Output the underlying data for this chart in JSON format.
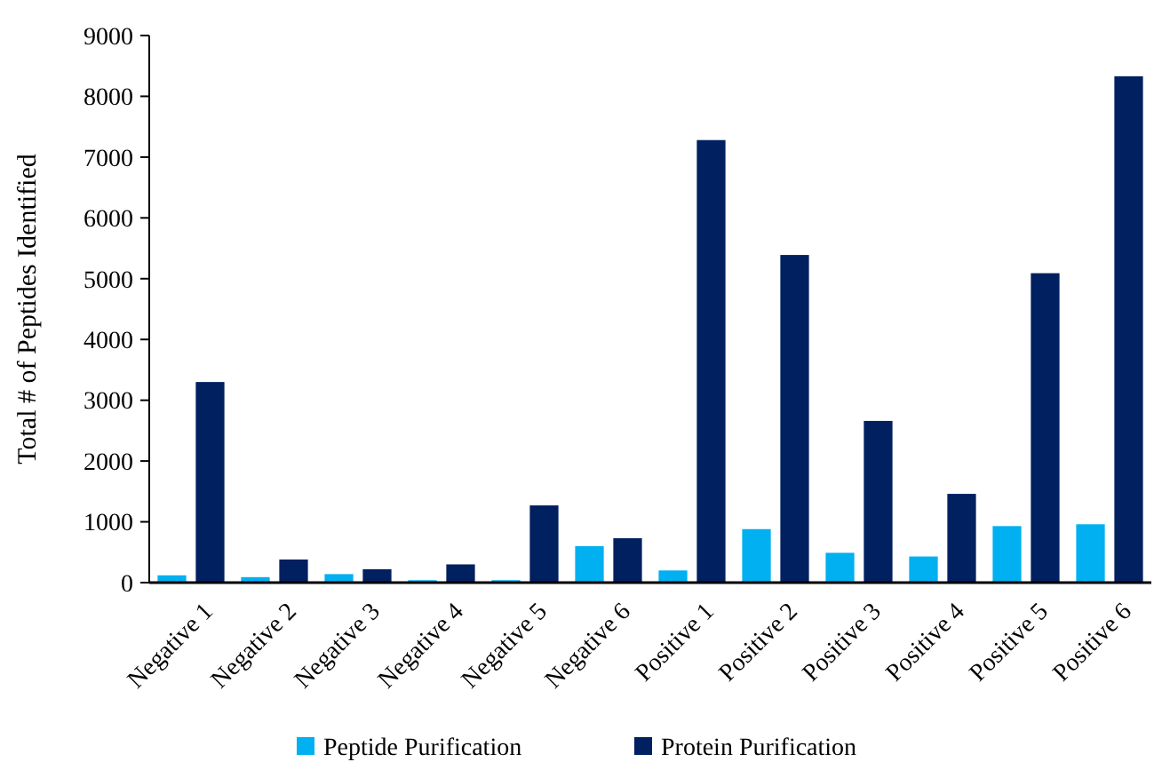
{
  "chart_data": {
    "type": "bar",
    "ylabel": "Total # of Peptides Identified",
    "categories": [
      "Negative 1",
      "Negative 2",
      "Negative 3",
      "Negative 4",
      "Negative 5",
      "Negative 6",
      "Positive 1",
      "Positive 2",
      "Positive 3",
      "Positive 4",
      "Positive 5",
      "Positive 6"
    ],
    "series": [
      {
        "name": "Peptide Purification",
        "color": "#00b0f0",
        "values": [
          120,
          90,
          140,
          40,
          40,
          600,
          200,
          880,
          490,
          430,
          930,
          960
        ]
      },
      {
        "name": "Protein Purification",
        "color": "#002060",
        "values": [
          3300,
          380,
          220,
          300,
          1270,
          730,
          7280,
          5390,
          2660,
          1460,
          5090,
          8330
        ]
      }
    ],
    "ylim": [
      0,
      9000
    ],
    "yticks": [
      0,
      1000,
      2000,
      3000,
      4000,
      5000,
      6000,
      7000,
      8000,
      9000
    ],
    "grid": false,
    "legend": "bottom"
  }
}
